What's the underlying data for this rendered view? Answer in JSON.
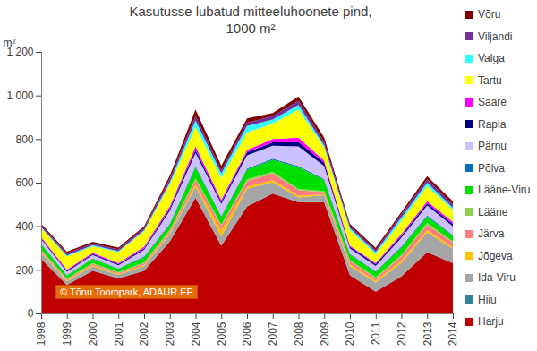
{
  "chart_data": {
    "type": "area",
    "stacked": true,
    "grid": false,
    "legend": "right",
    "title": "Kasutusse lubatud mitteeluhoonete pind,\n1000 m²",
    "y_label": "m²",
    "annotations": [
      "© Tõnu Toompark, ADAUR.EE"
    ],
    "x": [
      1998,
      1999,
      2000,
      2001,
      2002,
      2003,
      2004,
      2005,
      2006,
      2007,
      2008,
      2009,
      2010,
      2011,
      2012,
      2013,
      2014
    ],
    "xlim": [
      1998,
      2014
    ],
    "xticks": [
      1998,
      1999,
      2000,
      2001,
      2002,
      2003,
      2004,
      2005,
      2006,
      2007,
      2008,
      2009,
      2010,
      2011,
      2012,
      2013,
      2014
    ],
    "ylim": [
      0,
      1200
    ],
    "yticks": [
      0,
      200,
      400,
      600,
      800,
      {
        "value": 1000,
        "label": "1 000"
      },
      {
        "value": 1200,
        "label": "1 200"
      }
    ],
    "series": [
      {
        "name": "Harju",
        "color": "#c00000",
        "values": [
          250,
          130,
          195,
          160,
          195,
          330,
          530,
          310,
          490,
          550,
          510,
          510,
          175,
          100,
          170,
          280,
          230
        ]
      },
      {
        "name": "Hiiu",
        "color": "#31859c",
        "values": [
          2,
          2,
          2,
          2,
          2,
          2,
          2,
          2,
          2,
          2,
          2,
          2,
          2,
          2,
          2,
          2,
          2
        ]
      },
      {
        "name": "Ida-Viru",
        "color": "#a6a6a6",
        "values": [
          25,
          15,
          20,
          15,
          20,
          30,
          50,
          40,
          80,
          50,
          20,
          30,
          40,
          40,
          60,
          90,
          65
        ]
      },
      {
        "name": "Jõgeva",
        "color": "#ffc000",
        "values": [
          5,
          4,
          5,
          4,
          5,
          6,
          10,
          30,
          10,
          10,
          8,
          5,
          8,
          8,
          10,
          10,
          8
        ]
      },
      {
        "name": "Järva",
        "color": "#ff7c80",
        "values": [
          8,
          5,
          6,
          5,
          8,
          10,
          20,
          20,
          25,
          30,
          25,
          10,
          15,
          10,
          20,
          25,
          20
        ]
      },
      {
        "name": "Lääne",
        "color": "#92d050",
        "values": [
          3,
          3,
          3,
          3,
          4,
          5,
          8,
          6,
          8,
          8,
          6,
          5,
          5,
          5,
          6,
          8,
          6
        ]
      },
      {
        "name": "Lääne-Viru",
        "color": "#00e000",
        "values": [
          25,
          15,
          20,
          15,
          25,
          25,
          50,
          35,
          45,
          55,
          100,
          50,
          25,
          25,
          35,
          30,
          25
        ]
      },
      {
        "name": "Põlva",
        "color": "#0070c0",
        "values": [
          3,
          2,
          2,
          2,
          3,
          4,
          6,
          4,
          5,
          5,
          5,
          4,
          3,
          3,
          4,
          5,
          4
        ]
      },
      {
        "name": "Pärnu",
        "color": "#ccc0ff",
        "values": [
          20,
          15,
          15,
          15,
          30,
          60,
          60,
          55,
          60,
          60,
          90,
          60,
          25,
          25,
          40,
          45,
          40
        ]
      },
      {
        "name": "Rapla",
        "color": "#000080",
        "values": [
          5,
          5,
          5,
          5,
          6,
          10,
          15,
          10,
          15,
          15,
          20,
          15,
          8,
          8,
          10,
          10,
          10
        ]
      },
      {
        "name": "Saare",
        "color": "#ff00ff",
        "values": [
          5,
          5,
          5,
          5,
          8,
          10,
          15,
          10,
          10,
          15,
          20,
          10,
          5,
          5,
          8,
          10,
          10
        ]
      },
      {
        "name": "Tartu",
        "color": "#ffff00",
        "values": [
          40,
          60,
          30,
          50,
          70,
          100,
          90,
          100,
          80,
          70,
          130,
          60,
          70,
          40,
          60,
          70,
          55
        ]
      },
      {
        "name": "Valga",
        "color": "#33ffff",
        "values": [
          5,
          5,
          5,
          5,
          6,
          10,
          30,
          20,
          30,
          20,
          20,
          10,
          10,
          10,
          15,
          15,
          10
        ]
      },
      {
        "name": "Viljandi",
        "color": "#7030a0",
        "values": [
          8,
          10,
          8,
          8,
          10,
          15,
          20,
          15,
          15,
          15,
          20,
          15,
          10,
          10,
          15,
          15,
          15
        ]
      },
      {
        "name": "Võru",
        "color": "#7f0000",
        "values": [
          8,
          8,
          8,
          8,
          8,
          15,
          30,
          20,
          20,
          15,
          20,
          20,
          10,
          10,
          10,
          15,
          15
        ]
      }
    ]
  }
}
